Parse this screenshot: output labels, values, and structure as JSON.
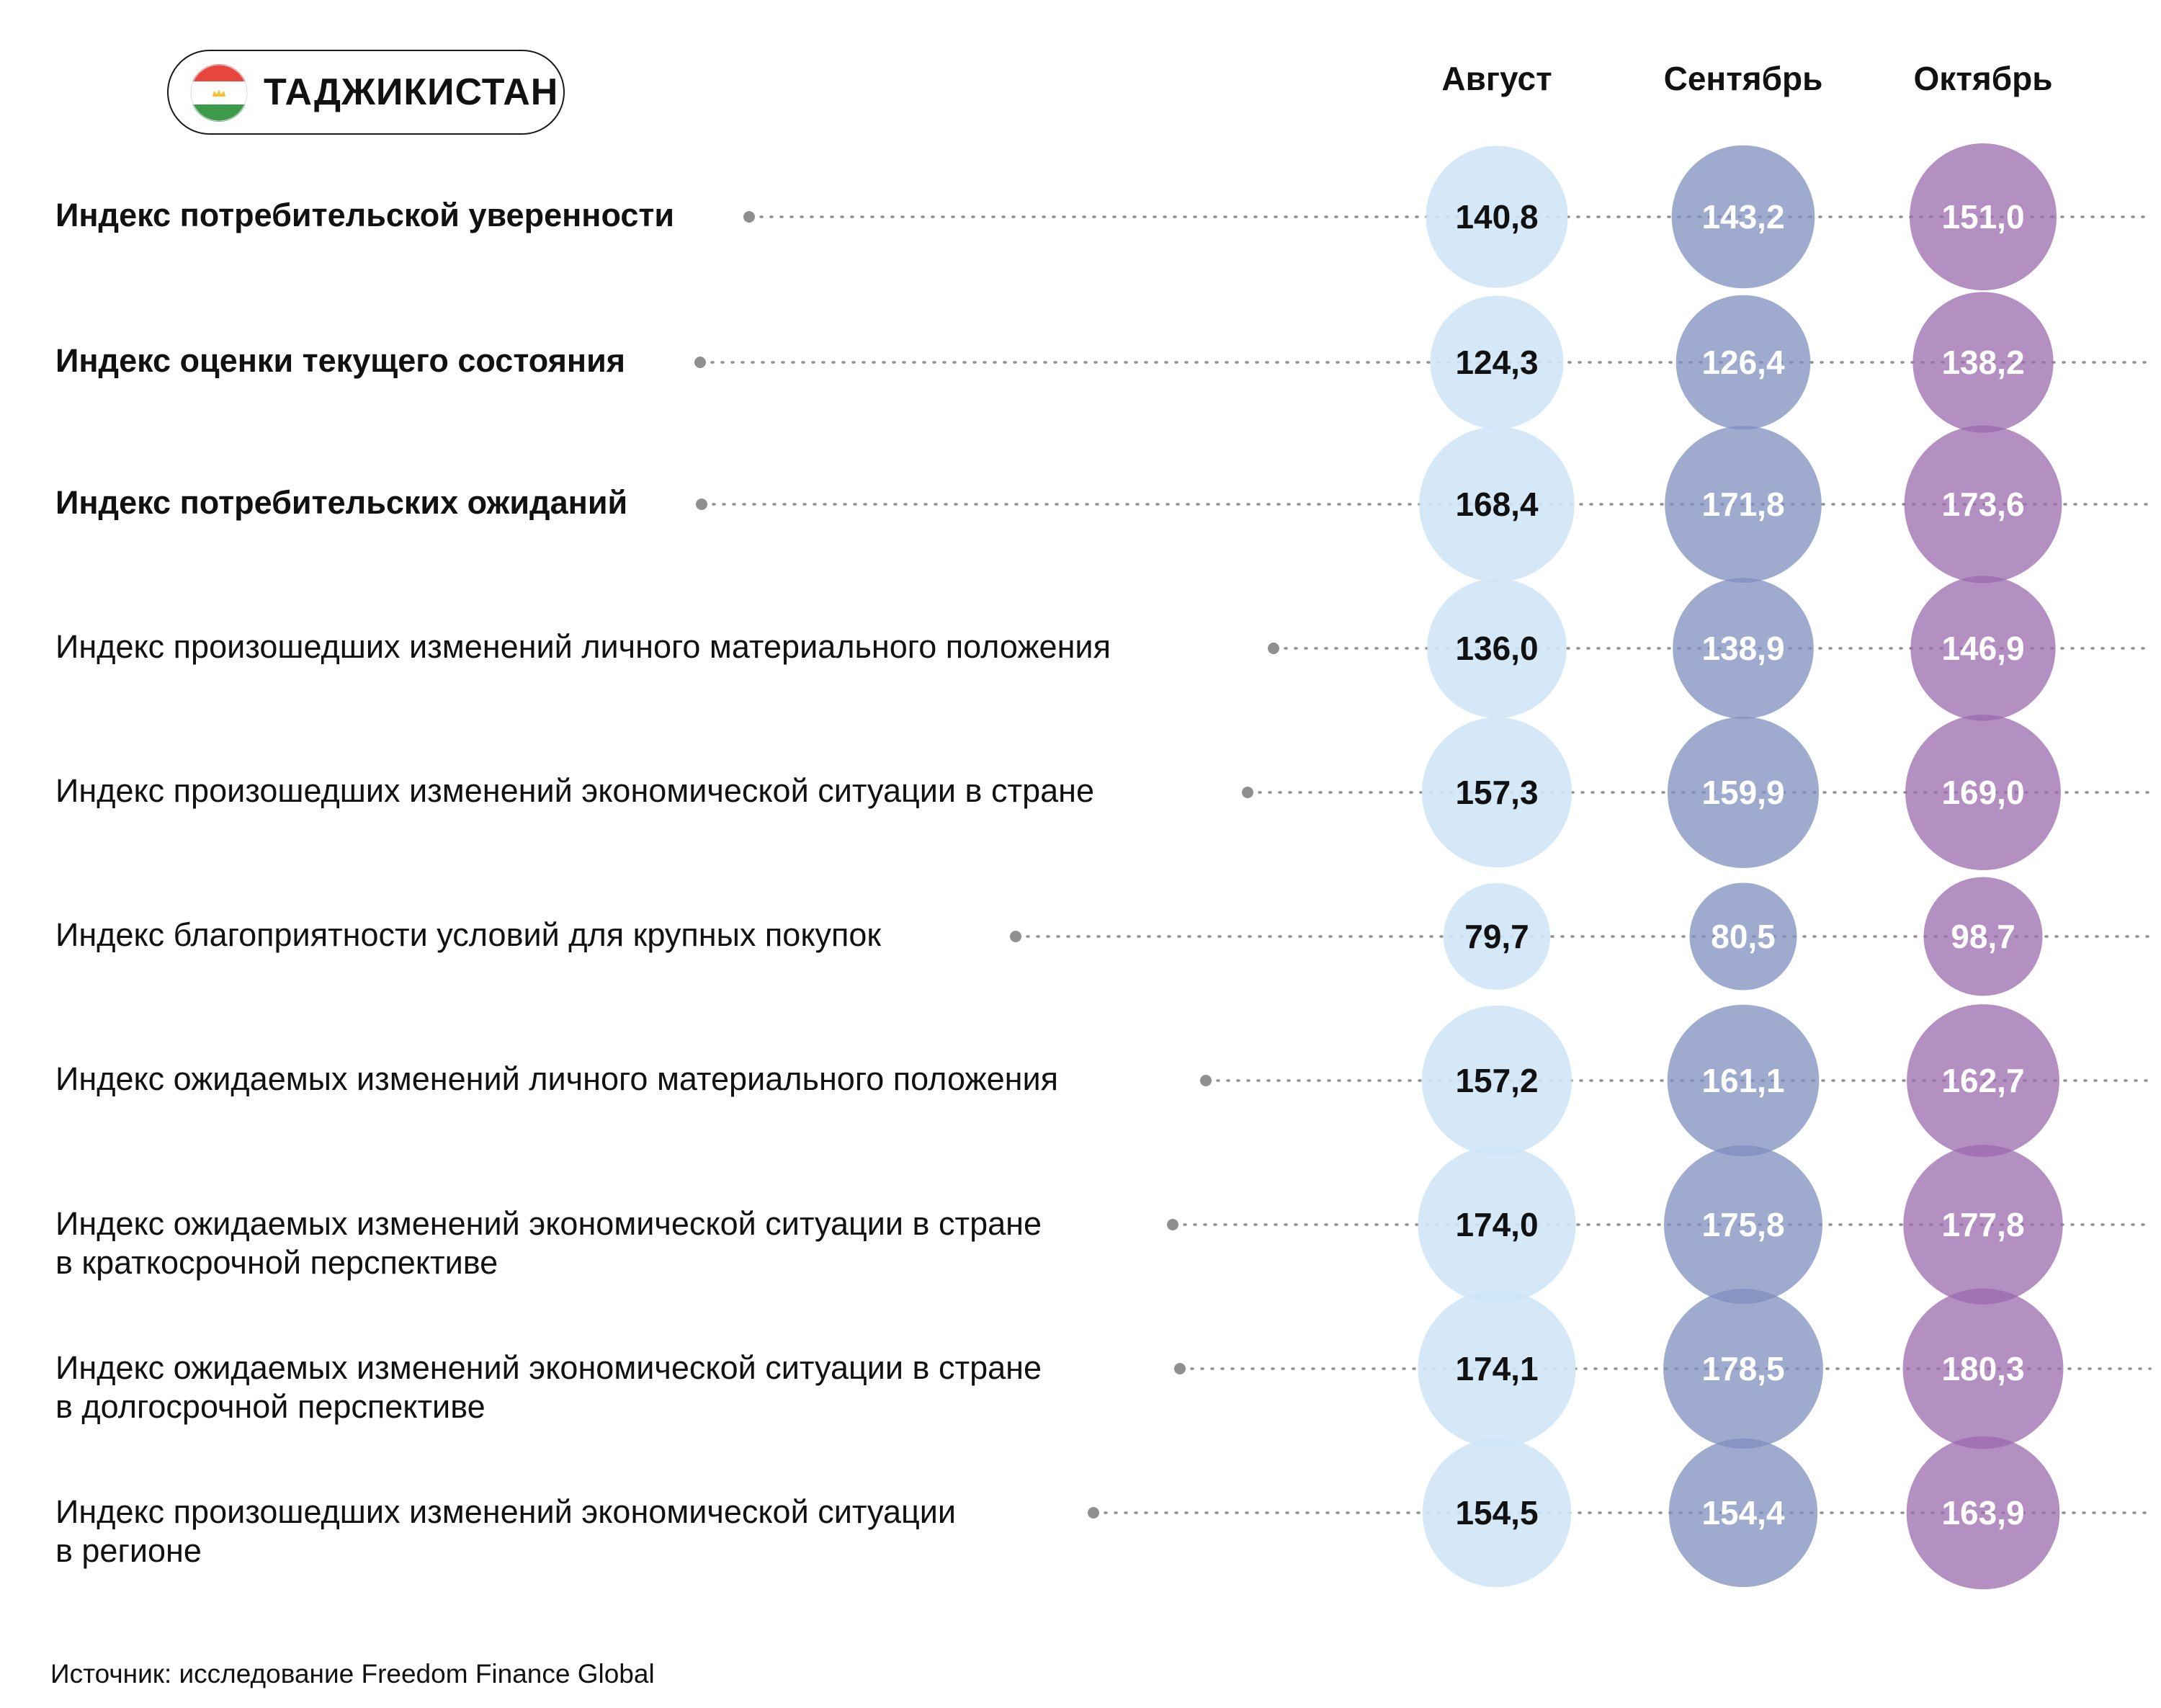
{
  "country": {
    "name": "ТАДЖИКИСТАН",
    "flag_icon": "tajikistan-flag-icon",
    "flag_colors": [
      "#e8453c",
      "#ffffff",
      "#3d9a4a",
      "#f2c230"
    ]
  },
  "source": "Источник: исследование Freedom Finance Global",
  "colors": {
    "august": "#cfe6f7",
    "september": "#7d8dbd",
    "october": "#9b6aae",
    "leader_dot": "#8f8f8f",
    "text_dark": "#111111",
    "text_light": "#ffffff"
  },
  "chart_data": {
    "type": "table",
    "columns": [
      "Август",
      "Сентябрь",
      "Октябрь"
    ],
    "rows": [
      {
        "label": "Индекс потребительской уверенности",
        "bold": true,
        "values": [
          "140,8",
          "143,2",
          "151,0"
        ]
      },
      {
        "label": "Индекс оценки текущего состояния",
        "bold": true,
        "values": [
          "124,3",
          "126,4",
          "138,2"
        ]
      },
      {
        "label": "Индекс потребительских ожиданий",
        "bold": true,
        "values": [
          "168,4",
          "171,8",
          "173,6"
        ]
      },
      {
        "label": "Индекс произошедших изменений личного материального положения",
        "bold": false,
        "values": [
          "136,0",
          "138,9",
          "146,9"
        ]
      },
      {
        "label": "Индекс произошедших изменений экономической ситуации в стране",
        "bold": false,
        "values": [
          "157,3",
          "159,9",
          "169,0"
        ]
      },
      {
        "label": "Индекс благоприятности условий для крупных покупок",
        "bold": false,
        "values": [
          "79,7",
          "80,5",
          "98,7"
        ]
      },
      {
        "label": "Индекс ожидаемых изменений личного материального положения",
        "bold": false,
        "values": [
          "157,2",
          "161,1",
          "162,7"
        ]
      },
      {
        "label": "Индекс ожидаемых изменений экономической ситуации в стране\nв краткосрочной перспективе",
        "bold": false,
        "values": [
          "174,0",
          "175,8",
          "177,8"
        ]
      },
      {
        "label": "Индекс ожидаемых изменений экономической ситуации в стране\nв долгосрочной перспективе",
        "bold": false,
        "values": [
          "174,1",
          "178,5",
          "180,3"
        ]
      },
      {
        "label": "Индекс произошедших изменений экономической ситуации\nв регионе",
        "bold": false,
        "values": [
          "154,5",
          "154,4",
          "163,9"
        ]
      }
    ]
  }
}
